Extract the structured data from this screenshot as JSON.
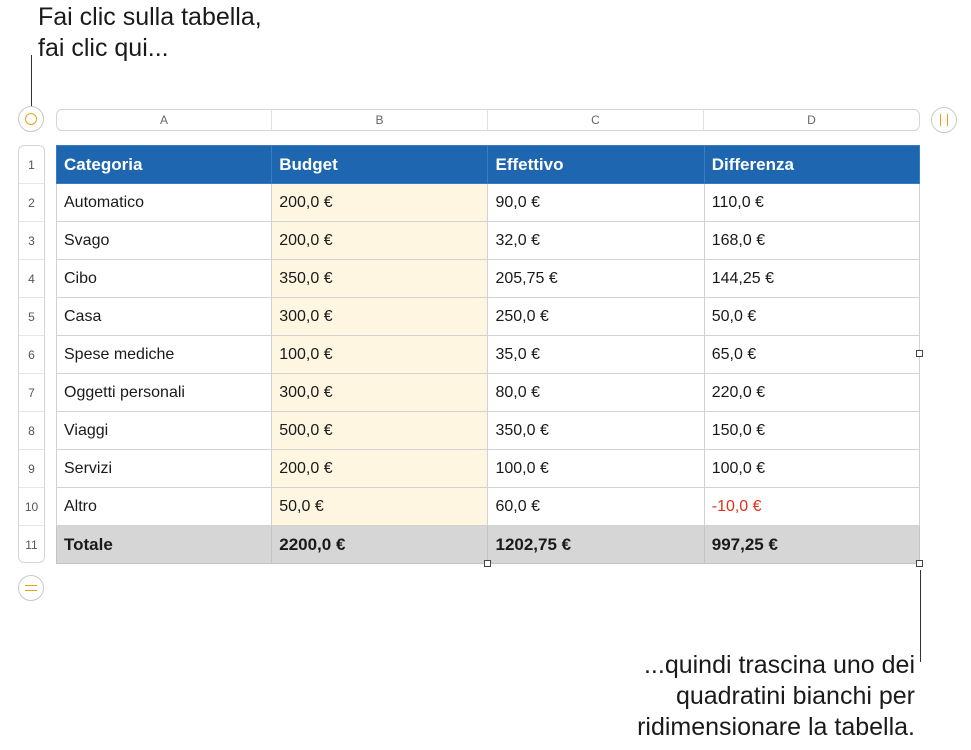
{
  "callouts": {
    "top_line1": "Fai clic sulla tabella,",
    "top_line2": "fai clic qui...",
    "bottom_line1": "...quindi trascina uno dei",
    "bottom_line2": "quadratini bianchi per",
    "bottom_line3": "ridimensionare la tabella."
  },
  "icons": {
    "select_table": "circle-select-icon",
    "column_handle": "pause-bars-icon",
    "row_handle": "equal-bars-icon"
  },
  "colors": {
    "header_bg": "#1f66b1",
    "budget_bg": "#fef6e1",
    "total_bg": "#d6d6d6",
    "accent": "#e8a21a",
    "negative": "#e0301e"
  },
  "column_labels": [
    "A",
    "B",
    "C",
    "D"
  ],
  "row_labels": [
    "1",
    "2",
    "3",
    "4",
    "5",
    "6",
    "7",
    "8",
    "9",
    "10",
    "11"
  ],
  "table": {
    "headers": [
      "Categoria",
      "Budget",
      "Effettivo",
      "Differenza"
    ],
    "rows": [
      [
        "Automatico",
        "200,0 €",
        "90,0 €",
        "110,0 €"
      ],
      [
        "Svago",
        "200,0 €",
        "32,0 €",
        "168,0 €"
      ],
      [
        "Cibo",
        "350,0 €",
        "205,75 €",
        "144,25 €"
      ],
      [
        "Casa",
        "300,0 €",
        "250,0 €",
        "50,0 €"
      ],
      [
        "Spese mediche",
        "100,0 €",
        "35,0 €",
        "65,0 €"
      ],
      [
        "Oggetti personali",
        "300,0 €",
        "80,0 €",
        "220,0 €"
      ],
      [
        "Viaggi",
        "500,0 €",
        "350,0 €",
        "150,0 €"
      ],
      [
        "Servizi",
        "200,0 €",
        "100,0 €",
        "100,0 €"
      ],
      [
        "Altro",
        "50,0 €",
        "60,0 €",
        "-10,0 €"
      ]
    ],
    "total": [
      "Totale",
      "2200,0 €",
      "1202,75 €",
      "997,25 €"
    ]
  }
}
